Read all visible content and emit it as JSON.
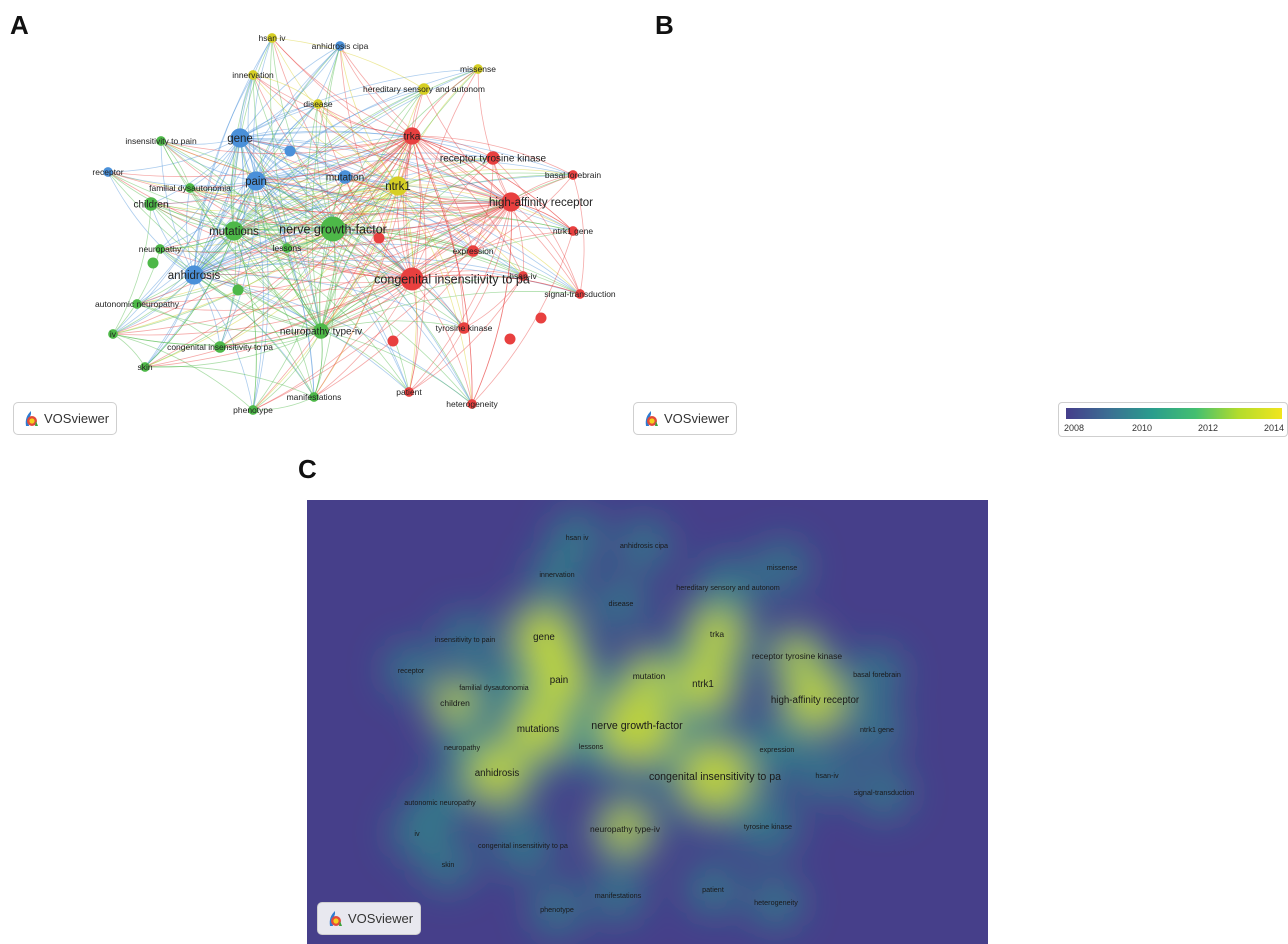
{
  "panels": {
    "a": "A",
    "b": "B",
    "c": "C"
  },
  "brand": "VOSviewer",
  "colorbar": {
    "ticks": [
      "2008",
      "2010",
      "2012",
      "2014"
    ],
    "range": [
      2007.5,
      2014.5
    ],
    "colors": [
      "#453d8b",
      "#3b6f93",
      "#2a9d8d",
      "#43bf70",
      "#b3dc2c",
      "#f1e51e"
    ]
  },
  "cluster_colors": {
    "red": "#e8403f",
    "green": "#4db848",
    "blue": "#4a90d9",
    "yellow": "#d6cf24"
  },
  "nodes": [
    {
      "id": "hsan iv",
      "cluster": "yellow",
      "year": 2009.5,
      "size": 3
    },
    {
      "id": "anhidrosis cipa",
      "cluster": "blue",
      "year": 2013.5,
      "size": 3
    },
    {
      "id": "missense",
      "cluster": "yellow",
      "year": 2014,
      "size": 3
    },
    {
      "id": "innervation",
      "cluster": "yellow",
      "year": 2009.5,
      "size": 3
    },
    {
      "id": "hereditary sensory and autonom",
      "cluster": "yellow",
      "year": 2009,
      "size": 4
    },
    {
      "id": "disease",
      "cluster": "yellow",
      "year": 2013,
      "size": 3
    },
    {
      "id": "insensitivity to pain",
      "cluster": "green",
      "year": 2010,
      "size": 3
    },
    {
      "id": "gene",
      "cluster": "blue",
      "year": 2011,
      "size": 8
    },
    {
      "id": "trka",
      "cluster": "red",
      "year": 2011.5,
      "size": 7
    },
    {
      "id": "receptor tyrosine kinase",
      "cluster": "red",
      "year": 2011,
      "size": 5
    },
    {
      "id": "receptor",
      "cluster": "blue",
      "year": 2009.5,
      "size": 3
    },
    {
      "id": "pain",
      "cluster": "blue",
      "year": 2011,
      "size": 8
    },
    {
      "id": "mutation",
      "cluster": "blue",
      "year": 2013.5,
      "size": 5
    },
    {
      "id": "basal forebrain",
      "cluster": "red",
      "year": 2008.5,
      "size": 3
    },
    {
      "id": "familial dysautonomia",
      "cluster": "green",
      "year": 2011,
      "size": 3
    },
    {
      "id": "ntrk1",
      "cluster": "yellow",
      "year": 2012,
      "size": 8
    },
    {
      "id": "high-affinity receptor",
      "cluster": "red",
      "year": 2008.5,
      "size": 8
    },
    {
      "id": "children",
      "cluster": "green",
      "year": 2013.5,
      "size": 5
    },
    {
      "id": "nerve growth-factor",
      "cluster": "green",
      "year": 2011.5,
      "size": 11
    },
    {
      "id": "mutations",
      "cluster": "green",
      "year": 2010.5,
      "size": 8
    },
    {
      "id": "ntrk1 gene",
      "cluster": "red",
      "year": 2014,
      "size": 3
    },
    {
      "id": "neuropathy",
      "cluster": "green",
      "year": 2012,
      "size": 3
    },
    {
      "id": "lessons",
      "cluster": "green",
      "year": 2013.5,
      "size": 3
    },
    {
      "id": "expression",
      "cluster": "red",
      "year": 2008,
      "size": 4
    },
    {
      "id": "anhidrosis",
      "cluster": "blue",
      "year": 2009,
      "size": 8
    },
    {
      "id": "congenital insensitivity to pa",
      "cluster": "red",
      "year": 2012.5,
      "size": 10
    },
    {
      "id": "hsan-iv",
      "cluster": "red",
      "year": 2010.5,
      "size": 3
    },
    {
      "id": "signal-transduction",
      "cluster": "red",
      "year": 2008,
      "size": 3
    },
    {
      "id": "autonomic neuropathy",
      "cluster": "green",
      "year": 2009.5,
      "size": 3
    },
    {
      "id": "neuropathy type-iv",
      "cluster": "green",
      "year": 2013.5,
      "size": 6
    },
    {
      "id": "tyrosine kinase",
      "cluster": "red",
      "year": 2012,
      "size": 4
    },
    {
      "id": "iv",
      "cluster": "green",
      "year": 2009.5,
      "size": 3
    },
    {
      "id": "congenital insensitivity to pa",
      "cluster": "green",
      "year": 2013,
      "size": 4
    },
    {
      "id": "skin",
      "cluster": "green",
      "year": 2008,
      "size": 3
    },
    {
      "id": "patient",
      "cluster": "red",
      "year": 2010.5,
      "size": 3
    },
    {
      "id": "manifestations",
      "cluster": "green",
      "year": 2012.5,
      "size": 3
    },
    {
      "id": "heterogeneity",
      "cluster": "red",
      "year": 2014,
      "size": 3
    },
    {
      "id": "phenotype",
      "cluster": "green",
      "year": 2013,
      "size": 3
    }
  ]
}
